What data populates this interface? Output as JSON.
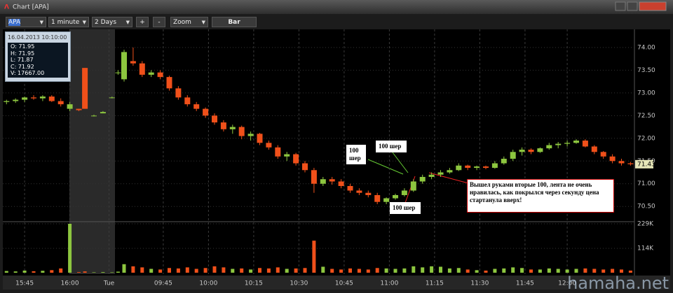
{
  "window": {
    "title": "Chart [APA]"
  },
  "toolbar": {
    "symbol": "APA",
    "interval": "1 minute",
    "range": "2 Days",
    "zoom_in": "+",
    "zoom_out": "-",
    "zoom": "Zoom",
    "style": "Bar"
  },
  "info_box": {
    "date": "16.04.2013 10:10:00",
    "lines": [
      "O: 71.95",
      "H: 71.95",
      "L: 71.87",
      "C: 71.92",
      "V: 17667.00"
    ]
  },
  "chart_data": {
    "type": "candlestick",
    "xlim": [
      -7,
      202
    ],
    "xticks": [
      {
        "value": 0,
        "label": "15:45"
      },
      {
        "value": 15,
        "label": "16:00"
      },
      {
        "value": 28,
        "label": "Tue"
      },
      {
        "value": 46,
        "label": "09:45"
      },
      {
        "value": 61,
        "label": "10:00"
      },
      {
        "value": 76,
        "label": "10:15"
      },
      {
        "value": 91,
        "label": "10:30"
      },
      {
        "value": 106,
        "label": "10:45"
      },
      {
        "value": 121,
        "label": "11:00"
      },
      {
        "value": 136,
        "label": "11:15"
      },
      {
        "value": 151,
        "label": "11:30"
      },
      {
        "value": 166,
        "label": "11:45"
      },
      {
        "value": 180,
        "label": "12:00"
      }
    ],
    "ylim": [
      70.18,
      74.43
    ],
    "yticks": [
      {
        "value": 70.5,
        "label": "70.50"
      },
      {
        "value": 71,
        "label": "71.00"
      },
      {
        "value": 71.5,
        "label": "71.50"
      },
      {
        "value": 72,
        "label": "72.00"
      },
      {
        "value": 72.5,
        "label": "72.50"
      },
      {
        "value": 73,
        "label": "73.00"
      },
      {
        "value": 73.5,
        "label": "73.50"
      },
      {
        "value": 74,
        "label": "74.00"
      }
    ],
    "volume_lim": [
      0,
      229
    ],
    "volume_ticks": [
      {
        "value": 114,
        "label": "114K"
      },
      {
        "value": 229,
        "label": "229K"
      }
    ],
    "colors": {
      "up": "#8dc63f",
      "down": "#f0501a"
    },
    "candles": [
      [
        -6,
        72.8,
        72.85,
        72.75,
        72.82,
        8
      ],
      [
        -3,
        72.82,
        72.88,
        72.78,
        72.85,
        6
      ],
      [
        0,
        72.85,
        72.92,
        72.8,
        72.9,
        10
      ],
      [
        3,
        72.9,
        72.95,
        72.85,
        72.88,
        7
      ],
      [
        6,
        72.88,
        72.95,
        72.82,
        72.92,
        9
      ],
      [
        9,
        72.92,
        72.95,
        72.8,
        72.82,
        12
      ],
      [
        12,
        72.82,
        72.88,
        72.7,
        72.75,
        20
      ],
      [
        15,
        72.65,
        72.8,
        72.6,
        72.75,
        229
      ],
      [
        18,
        72.65,
        72.65,
        72.6,
        72.62,
        3
      ],
      [
        20,
        73.55,
        73.55,
        72.65,
        72.65,
        6
      ],
      [
        23,
        72.5,
        72.52,
        72.48,
        72.5,
        2
      ],
      [
        26,
        72.55,
        72.6,
        72.55,
        72.58,
        3
      ],
      [
        29,
        72.9,
        72.92,
        72.88,
        72.9,
        2
      ],
      [
        31,
        73.45,
        73.5,
        73.4,
        73.45,
        5
      ],
      [
        33,
        73.3,
        73.95,
        73.25,
        73.9,
        40
      ],
      [
        36,
        73.7,
        74.0,
        73.6,
        73.65,
        30
      ],
      [
        39,
        73.65,
        73.7,
        73.35,
        73.4,
        25
      ],
      [
        42,
        73.4,
        73.5,
        73.35,
        73.45,
        18
      ],
      [
        45,
        73.45,
        73.5,
        73.3,
        73.35,
        15
      ],
      [
        48,
        73.35,
        73.38,
        73.05,
        73.1,
        22
      ],
      [
        51,
        73.1,
        73.15,
        72.85,
        72.9,
        20
      ],
      [
        54,
        72.9,
        72.95,
        72.7,
        72.75,
        25
      ],
      [
        57,
        72.75,
        72.8,
        72.6,
        72.65,
        18
      ],
      [
        60,
        72.65,
        72.68,
        72.45,
        72.5,
        22
      ],
      [
        63,
        72.5,
        72.55,
        72.3,
        72.35,
        30
      ],
      [
        66,
        72.35,
        72.4,
        72.15,
        72.2,
        25
      ],
      [
        69,
        72.2,
        72.3,
        72.1,
        72.25,
        18
      ],
      [
        72,
        72.25,
        72.28,
        71.98,
        72.05,
        20
      ],
      [
        75,
        72.05,
        72.15,
        71.95,
        72.1,
        15
      ],
      [
        78,
        72.1,
        72.12,
        71.85,
        71.9,
        22
      ],
      [
        81,
        71.9,
        71.95,
        71.75,
        71.8,
        20
      ],
      [
        84,
        71.8,
        71.85,
        71.55,
        71.6,
        25
      ],
      [
        87,
        71.6,
        71.7,
        71.5,
        71.65,
        18
      ],
      [
        90,
        71.65,
        71.68,
        71.4,
        71.45,
        20
      ],
      [
        93,
        71.45,
        71.5,
        71.25,
        71.3,
        22
      ],
      [
        96,
        71.3,
        71.35,
        70.8,
        71.0,
        150
      ],
      [
        99,
        71.0,
        71.15,
        70.95,
        71.1,
        28
      ],
      [
        102,
        71.1,
        71.15,
        70.98,
        71.05,
        18
      ],
      [
        105,
        71.05,
        71.1,
        70.9,
        70.95,
        15
      ],
      [
        108,
        70.95,
        71.0,
        70.8,
        70.85,
        20
      ],
      [
        111,
        70.85,
        70.9,
        70.75,
        70.8,
        18
      ],
      [
        114,
        70.8,
        70.85,
        70.7,
        70.75,
        15
      ],
      [
        117,
        70.75,
        70.8,
        70.55,
        70.6,
        22
      ],
      [
        120,
        70.6,
        70.7,
        70.55,
        70.68,
        20
      ],
      [
        123,
        70.68,
        70.78,
        70.65,
        70.75,
        18
      ],
      [
        126,
        70.75,
        70.9,
        70.72,
        70.85,
        20
      ],
      [
        129,
        70.85,
        71.1,
        70.82,
        71.05,
        30
      ],
      [
        132,
        71.05,
        71.2,
        71.0,
        71.15,
        25
      ],
      [
        135,
        71.15,
        71.25,
        71.1,
        71.2,
        30
      ],
      [
        138,
        71.2,
        71.3,
        71.15,
        71.25,
        28
      ],
      [
        141,
        71.25,
        71.35,
        71.22,
        71.3,
        20
      ],
      [
        144,
        71.3,
        71.45,
        71.28,
        71.4,
        22
      ],
      [
        147,
        71.4,
        71.42,
        71.3,
        71.35,
        15
      ],
      [
        150,
        71.35,
        71.4,
        71.3,
        71.38,
        12
      ],
      [
        153,
        71.38,
        71.4,
        71.32,
        71.35,
        10
      ],
      [
        156,
        71.35,
        71.5,
        71.33,
        71.45,
        18
      ],
      [
        159,
        71.45,
        71.6,
        71.42,
        71.55,
        20
      ],
      [
        162,
        71.55,
        71.75,
        71.5,
        71.7,
        25
      ],
      [
        165,
        71.7,
        71.8,
        71.62,
        71.75,
        22
      ],
      [
        168,
        71.75,
        71.78,
        71.65,
        71.7,
        15
      ],
      [
        171,
        71.7,
        71.8,
        71.68,
        71.78,
        15
      ],
      [
        174,
        71.78,
        71.9,
        71.75,
        71.85,
        20
      ],
      [
        177,
        71.85,
        71.92,
        71.78,
        71.88,
        18
      ],
      [
        180,
        71.88,
        71.95,
        71.82,
        71.9,
        15
      ],
      [
        183,
        71.9,
        71.98,
        71.88,
        71.95,
        18
      ],
      [
        186,
        71.95,
        71.98,
        71.8,
        71.82,
        20
      ],
      [
        189,
        71.82,
        71.85,
        71.65,
        71.7,
        18
      ],
      [
        192,
        71.7,
        71.72,
        71.55,
        71.6,
        15
      ],
      [
        195,
        71.6,
        71.65,
        71.45,
        71.5,
        18
      ],
      [
        198,
        71.5,
        71.55,
        71.4,
        71.45,
        15
      ],
      [
        201,
        71.45,
        71.48,
        71.4,
        71.43,
        10
      ]
    ],
    "last_price": {
      "value": 71.43,
      "label": "71.43"
    },
    "annotations": [
      "100 шер",
      "100 шер",
      "100 шер",
      "Вышел руками вторые 100, лента не очень нравилась, как покрылся через секунду цена стартанула вверх!"
    ],
    "watermark": "hamaha.net"
  }
}
